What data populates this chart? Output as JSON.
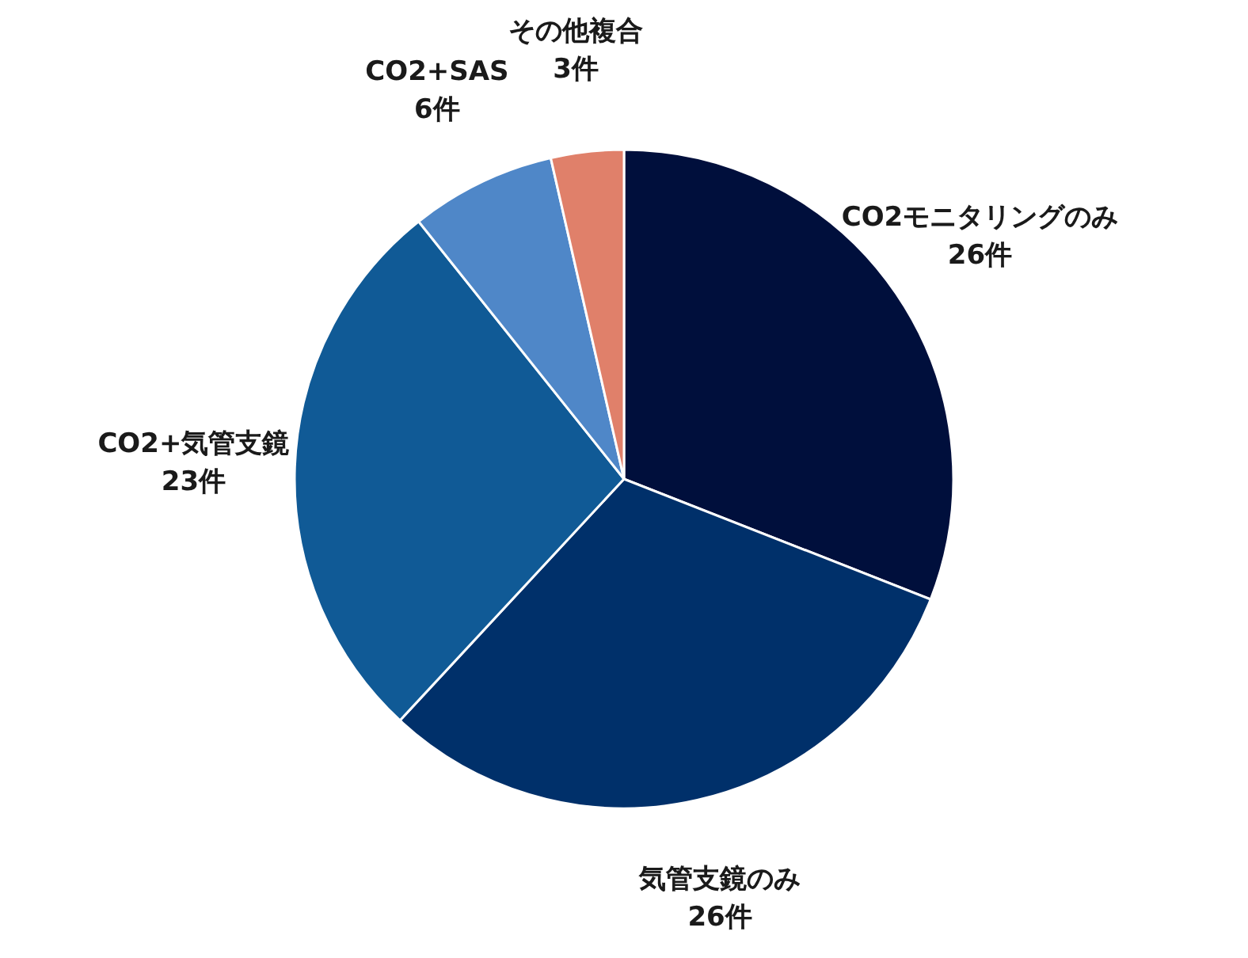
{
  "chart_data": {
    "type": "pie",
    "categories": [
      "CO2モニタリングのみ",
      "気管支鏡のみ",
      "CO2+気管支鏡",
      "CO2+SAS",
      "その他複合"
    ],
    "values": [
      26,
      26,
      23,
      6,
      3
    ],
    "value_labels": [
      "26件",
      "26件",
      "23件",
      "6件",
      "3件"
    ],
    "colors": [
      "#000f3c",
      "#00306a",
      "#105a96",
      "#4f87c8",
      "#e0806a"
    ],
    "legend": false
  }
}
